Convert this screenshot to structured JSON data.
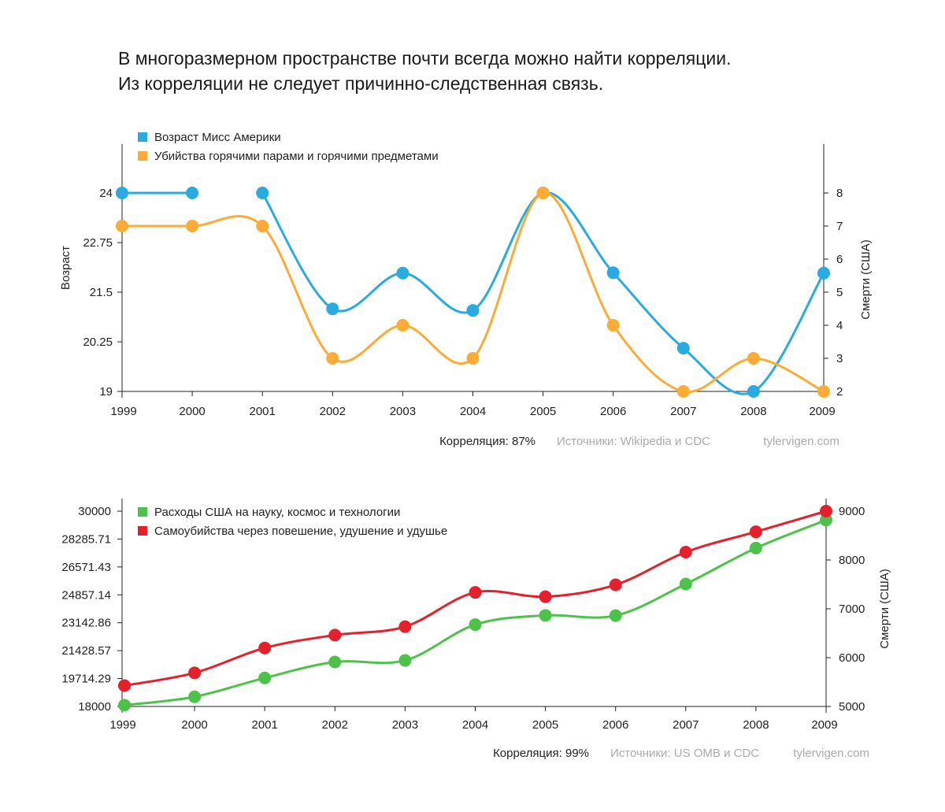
{
  "headline": {
    "line1": "В многоразмерном пространстве почти всегда можно найти корреляции.",
    "line2": "Из корреляции не следует причинно-следственная связь."
  },
  "chart_data": [
    {
      "type": "line",
      "x": [
        1999,
        2000,
        2001,
        2002,
        2003,
        2004,
        2005,
        2006,
        2007,
        2008,
        2009
      ],
      "y_left_label": "Возраст",
      "y_left_ticks": [
        "19",
        "20.25",
        "21.5",
        "22.75",
        "24"
      ],
      "y_left_lim": [
        19,
        24
      ],
      "y_right_label": "Смерти (США)",
      "y_right_ticks": [
        "2",
        "3",
        "4",
        "5",
        "6",
        "7",
        "8"
      ],
      "y_right_lim": [
        2,
        8
      ],
      "series": [
        {
          "name": "Возраст Мисс Америки",
          "axis": "left",
          "color": "#29abe2",
          "values": [
            24,
            24,
            24,
            21.08,
            21.98,
            21.04,
            24,
            21.99,
            20.09,
            19,
            21.98
          ]
        },
        {
          "name": "Убийства горячими парами и горячими предметами",
          "axis": "right",
          "color": "#fbab36",
          "values": [
            7,
            7,
            7,
            3,
            4,
            3,
            8,
            4,
            2,
            3,
            2
          ]
        }
      ],
      "correlation": "Корреляция: 87%",
      "sources": "Источники: Wikipedia и CDC",
      "site": "tylervigen.com"
    },
    {
      "type": "line",
      "x": [
        1999,
        2000,
        2001,
        2002,
        2003,
        2004,
        2005,
        2006,
        2007,
        2008,
        2009
      ],
      "y_left_label": "",
      "y_left_ticks": [
        "18000",
        "19714.29",
        "21428.57",
        "23142.86",
        "24857.14",
        "26571.43",
        "28285.71",
        "30000"
      ],
      "y_left_lim": [
        18000,
        30000
      ],
      "y_right_label": "Смерти (США)",
      "y_right_ticks": [
        "5000",
        "6000",
        "7000",
        "8000",
        "9000"
      ],
      "y_right_lim": [
        5000,
        9000
      ],
      "series": [
        {
          "name": "Расходы США на науку, космос и технологии",
          "axis": "left",
          "color": "#4cc24a",
          "values": [
            18079,
            18594,
            19753,
            20734,
            20831,
            23029,
            23597,
            23584,
            25525,
            27731,
            29449
          ]
        },
        {
          "name": "Самоубийства через повешение, удушение и удушье",
          "axis": "right",
          "color": "#e3202c",
          "values": [
            5427,
            5688,
            6198,
            6462,
            6635,
            7336,
            7248,
            7491,
            8161,
            8578,
            9000
          ]
        }
      ],
      "correlation": "Корреляция: 99%",
      "sources": "Источники: US OMB и CDC",
      "site": "tylervigen.com"
    }
  ]
}
